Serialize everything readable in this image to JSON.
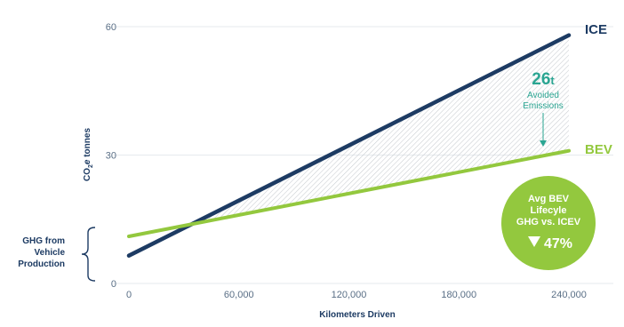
{
  "colors": {
    "ice": "#1d3b63",
    "bev": "#93c83e",
    "avoided": "#2aa592",
    "grid": "#e6eaee",
    "hatch": "#c8ccd0",
    "tick": "#5a6f86"
  },
  "chart_data": {
    "type": "line",
    "xlabel": "Kilometers Driven",
    "ylabel": "CO2e tonnes",
    "xlim": [
      0,
      240000
    ],
    "ylim": [
      0,
      60
    ],
    "x_ticks": [
      "0",
      "60,000",
      "120,000",
      "180,000",
      "240,000"
    ],
    "y_ticks": [
      "0",
      "30",
      "60"
    ],
    "grid": "horizontal",
    "series": [
      {
        "name": "ICE",
        "x": [
          0,
          240000
        ],
        "y": [
          6.5,
          58
        ]
      },
      {
        "name": "BEV",
        "x": [
          0,
          240000
        ],
        "y": [
          11,
          31
        ]
      }
    ],
    "annotations": {
      "avoided_value": "26",
      "avoided_unit": "t",
      "avoided_line1": "Avoided",
      "avoided_line2": "Emissions",
      "production_line1": "GHG from",
      "production_line2": "Vehicle",
      "production_line3": "Production",
      "badge_line1": "Avg BEV",
      "badge_line2": "Lifecyle",
      "badge_line3": "GHG vs. ICEV",
      "badge_value": "47%",
      "badge_icon": "down-triangle-icon"
    }
  }
}
